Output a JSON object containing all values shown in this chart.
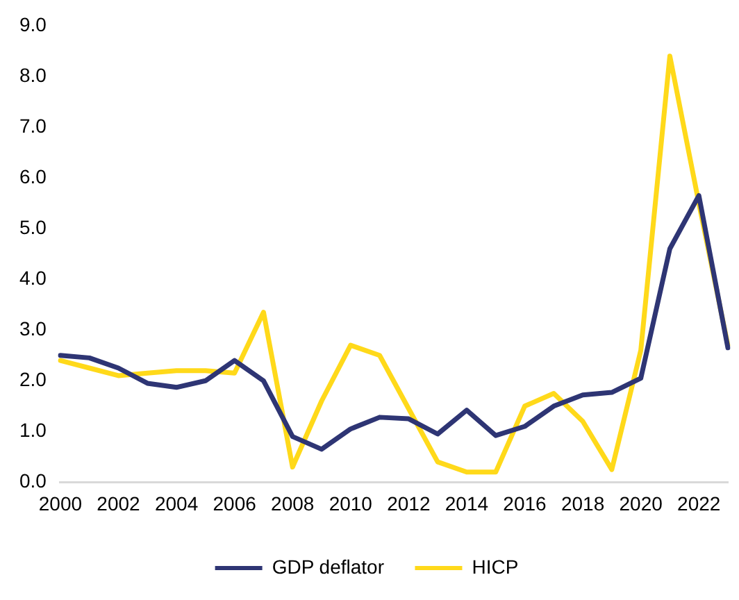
{
  "chart_data": {
    "type": "line",
    "categories": [
      "2000",
      null,
      "2002",
      null,
      "2004",
      null,
      "2006",
      null,
      "2008",
      null,
      "2010",
      null,
      "2012",
      null,
      "2014",
      null,
      "2016",
      null,
      "2018",
      null,
      "2020",
      null,
      "2022",
      null
    ],
    "series": [
      {
        "name": "GDP deflator",
        "color": "#2e3574",
        "values": [
          2.5,
          2.45,
          2.25,
          1.95,
          1.87,
          2.0,
          2.4,
          2.0,
          0.9,
          0.65,
          1.05,
          1.28,
          1.25,
          0.95,
          1.42,
          0.92,
          1.1,
          1.5,
          1.72,
          1.77,
          2.05,
          4.6,
          5.65,
          2.65
        ]
      },
      {
        "name": "HICP",
        "color": "#ffd91a",
        "values": [
          2.4,
          2.25,
          2.1,
          2.15,
          2.2,
          2.2,
          2.15,
          3.35,
          0.3,
          1.6,
          2.7,
          2.5,
          1.45,
          0.4,
          0.2,
          0.2,
          1.5,
          1.75,
          1.2,
          0.25,
          2.6,
          8.4,
          5.5,
          2.7
        ]
      }
    ],
    "ylim": [
      0,
      9
    ],
    "yticks": [
      {
        "value": 0,
        "label": "0.0"
      },
      {
        "value": 1,
        "label": "1.0"
      },
      {
        "value": 2,
        "label": "2.0"
      },
      {
        "value": 3,
        "label": "3.0"
      },
      {
        "value": 4,
        "label": "4.0"
      },
      {
        "value": 5,
        "label": "5.0"
      },
      {
        "value": 6,
        "label": "6.0"
      },
      {
        "value": 7,
        "label": "7.0"
      },
      {
        "value": 8,
        "label": "8.0"
      },
      {
        "value": 9,
        "label": "9.0"
      }
    ],
    "grid": false,
    "legend": "bottom",
    "marker": "none",
    "line_style": "solid"
  }
}
